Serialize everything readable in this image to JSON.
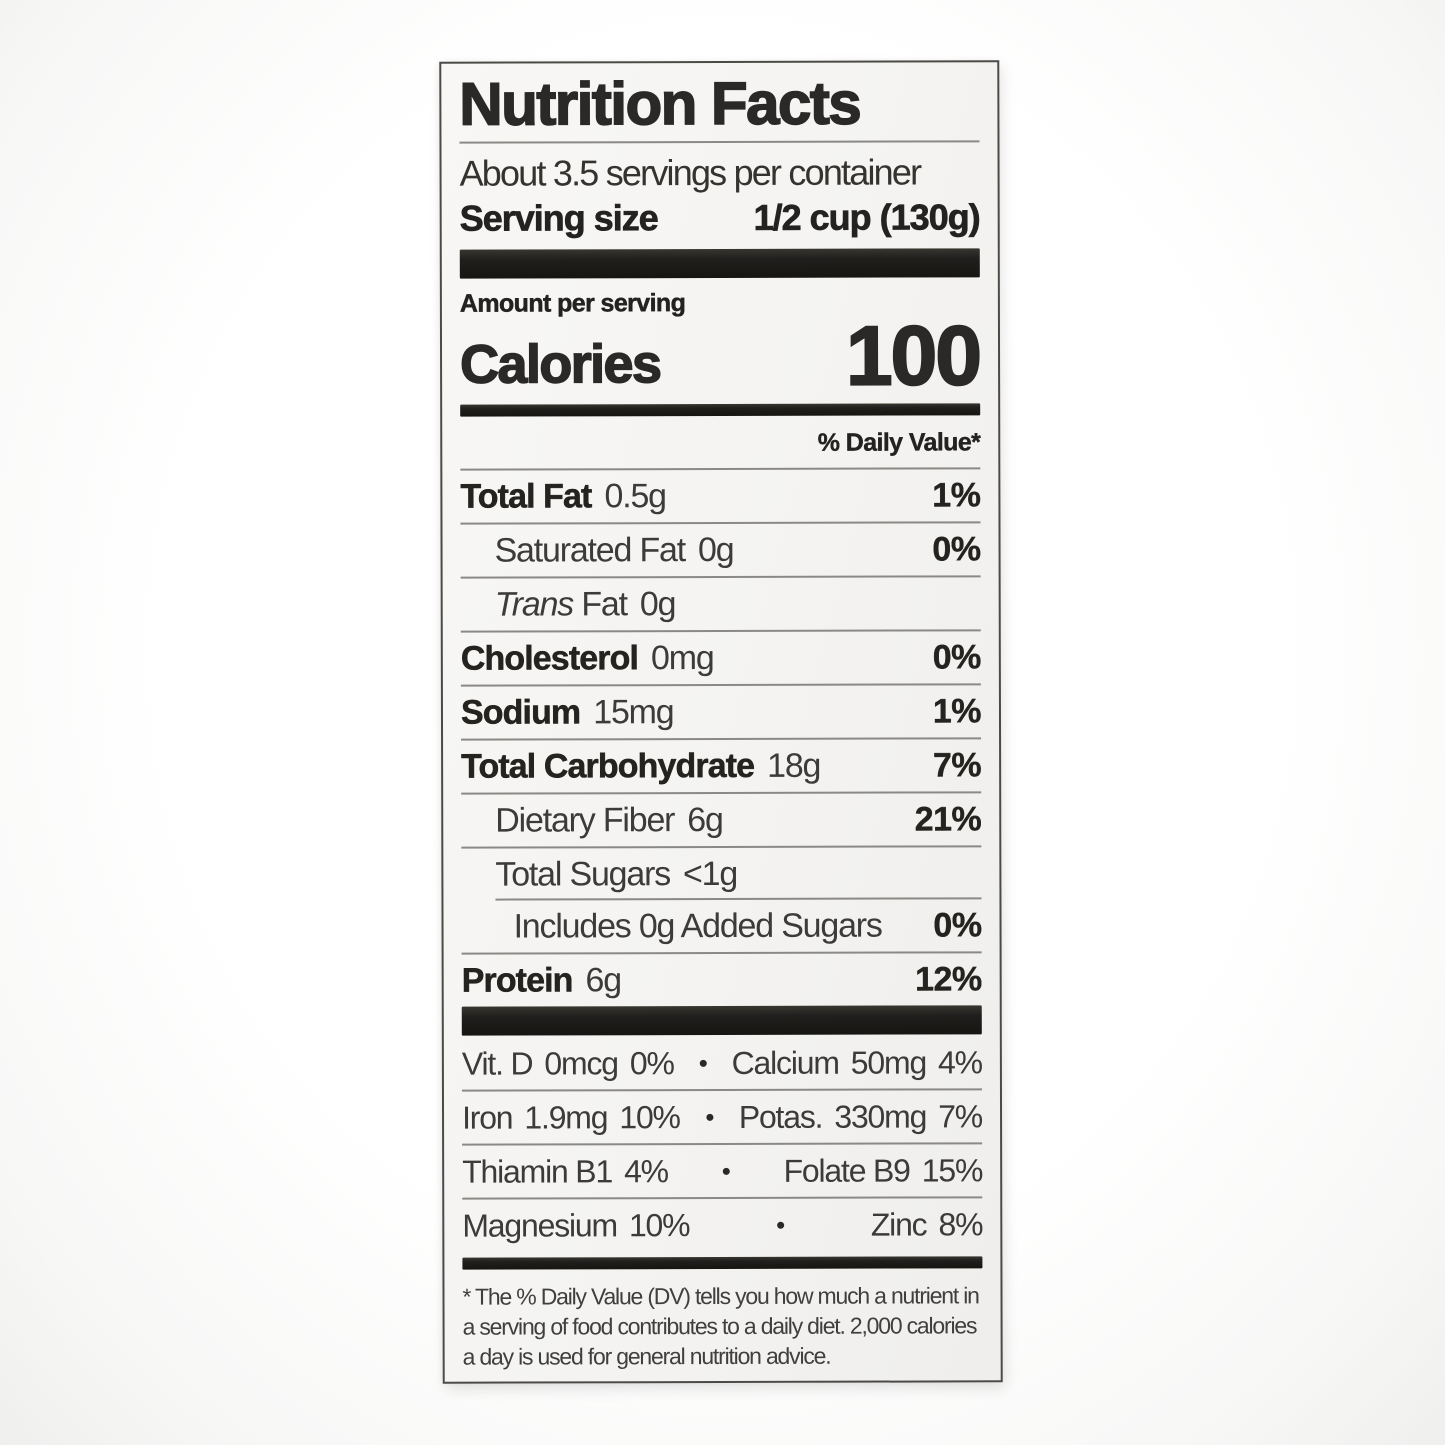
{
  "colors": {
    "label_bg": "#f4f3f1",
    "bar": "#201f1d",
    "text": "#232220",
    "muted_text": "#3c3b39",
    "hairline": "#8b8986",
    "border": "#4c4a47"
  },
  "label": {
    "title": "Nutrition Facts",
    "servings_per_container": "About 3.5 servings per container",
    "serving_size": {
      "label": "Serving size",
      "value": "1/2 cup (130g)"
    },
    "amount_per_serving": "Amount per serving",
    "calories": {
      "label": "Calories",
      "value": "100"
    },
    "daily_value_header": "% Daily Value*",
    "nutrients": [
      {
        "name": "Total Fat",
        "amount": "0.5g",
        "dv": "1%",
        "indent": 0,
        "bold": true
      },
      {
        "name": "Saturated Fat",
        "amount": "0g",
        "dv": "0%",
        "indent": 1,
        "bold": false
      },
      {
        "italic": "Trans",
        "name": "Fat",
        "amount": "0g",
        "dv": "",
        "indent": 1,
        "bold": false
      },
      {
        "name": "Cholesterol",
        "amount": "0mg",
        "dv": "0%",
        "indent": 0,
        "bold": true
      },
      {
        "name": "Sodium",
        "amount": "15mg",
        "dv": "1%",
        "indent": 0,
        "bold": true
      },
      {
        "name": "Total Carbohydrate",
        "amount": "18g",
        "dv": "7%",
        "indent": 0,
        "bold": true
      },
      {
        "name": "Dietary Fiber",
        "amount": "6g",
        "dv": "21%",
        "indent": 1,
        "bold": false
      },
      {
        "name": "Total Sugars",
        "amount": "<1g",
        "dv": "",
        "indent": 1,
        "bold": false
      },
      {
        "name": "Includes 0g Added Sugars",
        "amount": "",
        "dv": "0%",
        "indent": 2,
        "bold": false,
        "sep_indent": true
      },
      {
        "name": "Protein",
        "amount": "6g",
        "dv": "12%",
        "indent": 0,
        "bold": true
      }
    ],
    "bullet": "•",
    "micronutrients": [
      {
        "left": {
          "name": "Vit. D",
          "amount": "0mcg",
          "dv": "0%"
        },
        "right": {
          "name": "Calcium",
          "amount": "50mg",
          "dv": "4%"
        }
      },
      {
        "left": {
          "name": "Iron",
          "amount": "1.9mg",
          "dv": "10%"
        },
        "right": {
          "name": "Potas.",
          "amount": "330mg",
          "dv": "7%"
        }
      },
      {
        "left": {
          "name": "Thiamin B1",
          "amount": "",
          "dv": "4%"
        },
        "right": {
          "name": "Folate B9",
          "amount": "",
          "dv": "15%"
        }
      },
      {
        "left": {
          "name": "Magnesium",
          "amount": "",
          "dv": "10%"
        },
        "right": {
          "name": "Zinc",
          "amount": "",
          "dv": "8%"
        }
      }
    ],
    "footnote": "* The % Daily Value (DV) tells you how much a nutrient in a serving of food contributes to a daily diet. 2,000 calories a day is used for general nutrition advice."
  }
}
